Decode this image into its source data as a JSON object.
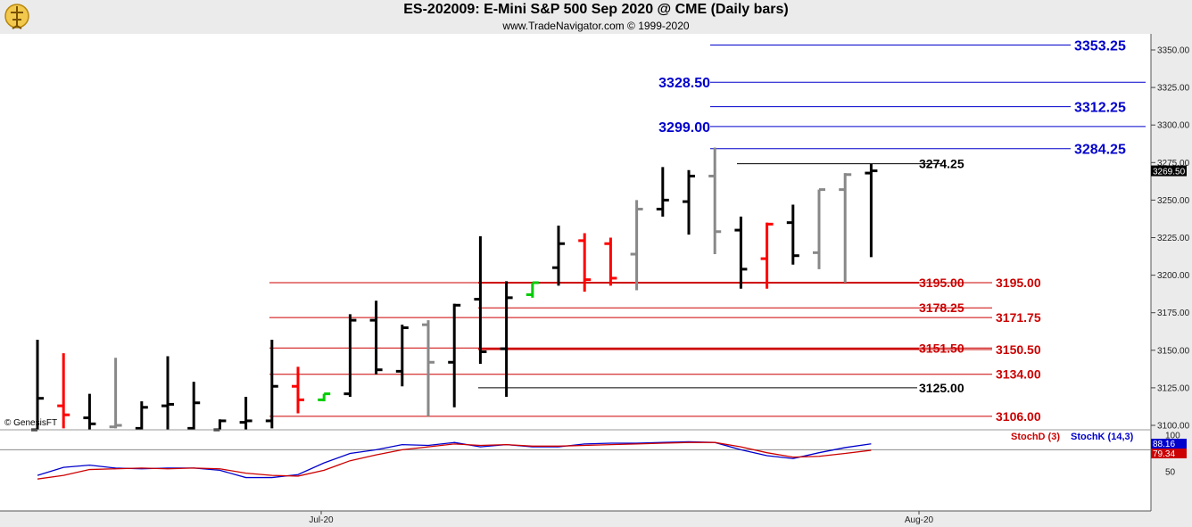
{
  "header": {
    "title": "ES-202009:  E-Mini S&P 500 Sep 2020 @ CME  (Daily bars)",
    "subtitle": "www.TradeNavigator.com © 1999-2020"
  },
  "copyright": "© GenesisFT",
  "colors": {
    "up_bar": "#000000",
    "down_bar": "#ff0000",
    "grey_bar": "#888888",
    "green_bar": "#00cc00",
    "blue_level": "#0000cc",
    "red_level": "#cc0000",
    "stoch_k": "#0000cc",
    "stoch_d": "#cc0000"
  },
  "chart_data": [
    {
      "type": "ohlc",
      "price_axis": {
        "min": 3100,
        "max": 3350,
        "ticks": [
          "3100.00",
          "3125.00",
          "3150.00",
          "3175.00",
          "3200.00",
          "3225.00",
          "3250.00",
          "3275.00",
          "3300.00",
          "3325.00",
          "3350.00"
        ]
      },
      "time_axis": {
        "labels": [
          "Jul-20",
          "Aug-20"
        ]
      },
      "last_price": "3269.50",
      "bars": [
        {
          "h": 3157,
          "l": 3090,
          "o": 3090,
          "c": 3118,
          "color": "black"
        },
        {
          "h": 3148,
          "l": 3098,
          "o": 3113,
          "c": 3107,
          "color": "red"
        },
        {
          "h": 3121,
          "l": 3095,
          "o": 3105,
          "c": 3101,
          "color": "black"
        },
        {
          "h": 3145,
          "l": 3098,
          "o": 3099,
          "c": 3100,
          "color": "grey"
        },
        {
          "h": 3116,
          "l": 3097,
          "o": 3098,
          "c": 3112,
          "color": "black"
        },
        {
          "h": 3146,
          "l": 3097,
          "o": 3113,
          "c": 3114,
          "color": "black"
        },
        {
          "h": 3129,
          "l": 3097,
          "o": 3098,
          "c": 3115,
          "color": "black"
        },
        {
          "h": 3104,
          "l": 3093,
          "o": 3094,
          "c": 3103,
          "color": "black"
        },
        {
          "h": 3119,
          "l": 3096,
          "o": 3102,
          "c": 3103,
          "color": "black"
        },
        {
          "h": 3157,
          "l": 3098,
          "o": 3103,
          "c": 3126,
          "color": "black"
        },
        {
          "h": 3139,
          "l": 3108,
          "o": 3126,
          "c": 3117,
          "color": "red"
        },
        {
          "h": 3121,
          "l": 3116,
          "o": 3117,
          "c": 3121,
          "color": "green"
        },
        {
          "h": 3174,
          "l": 3119,
          "o": 3121,
          "c": 3170,
          "color": "black"
        },
        {
          "h": 3183,
          "l": 3134,
          "o": 3170,
          "c": 3137,
          "color": "black"
        },
        {
          "h": 3167,
          "l": 3126,
          "o": 3136,
          "c": 3165,
          "color": "black"
        },
        {
          "h": 3170,
          "l": 3106,
          "o": 3167,
          "c": 3142,
          "color": "grey"
        },
        {
          "h": 3181,
          "l": 3112,
          "o": 3142,
          "c": 3180,
          "color": "black"
        },
        {
          "h": 3226,
          "l": 3141,
          "o": 3184,
          "c": 3149,
          "color": "black"
        },
        {
          "h": 3196,
          "l": 3119,
          "o": 3151,
          "c": 3185,
          "color": "black"
        },
        {
          "h": 3195,
          "l": 3185,
          "o": 3187,
          "c": 3195,
          "color": "green"
        },
        {
          "h": 3233,
          "l": 3193,
          "o": 3205,
          "c": 3221,
          "color": "black"
        },
        {
          "h": 3228,
          "l": 3189,
          "o": 3223,
          "c": 3197,
          "color": "red"
        },
        {
          "h": 3225,
          "l": 3193,
          "o": 3221,
          "c": 3198,
          "color": "red"
        },
        {
          "h": 3250,
          "l": 3190,
          "o": 3214,
          "c": 3244,
          "color": "grey"
        },
        {
          "h": 3272,
          "l": 3239,
          "o": 3244,
          "c": 3250,
          "color": "black"
        },
        {
          "h": 3270,
          "l": 3227,
          "o": 3249,
          "c": 3266,
          "color": "black"
        },
        {
          "h": 3285,
          "l": 3214,
          "o": 3266,
          "c": 3229,
          "color": "grey"
        },
        {
          "h": 3239,
          "l": 3191,
          "o": 3230,
          "c": 3204,
          "color": "black"
        },
        {
          "h": 3235,
          "l": 3191,
          "o": 3211,
          "c": 3234,
          "color": "red"
        },
        {
          "h": 3247,
          "l": 3207,
          "o": 3235,
          "c": 3213,
          "color": "black"
        },
        {
          "h": 3257,
          "l": 3204,
          "o": 3215,
          "c": 3257,
          "color": "grey"
        },
        {
          "h": 3268,
          "l": 3195,
          "o": 3257,
          "c": 3267,
          "color": "grey"
        },
        {
          "h": 3274,
          "l": 3212,
          "o": 3268,
          "c": 3269.5,
          "color": "black"
        }
      ],
      "levels": [
        {
          "price": 3353.25,
          "label": "3353.25",
          "color": "blue",
          "label_pos": "right"
        },
        {
          "price": 3328.5,
          "label": "3328.50",
          "color": "blue",
          "label_pos": "left"
        },
        {
          "price": 3312.25,
          "label": "3312.25",
          "color": "blue",
          "label_pos": "right"
        },
        {
          "price": 3299.0,
          "label": "3299.00",
          "color": "blue",
          "label_pos": "left"
        },
        {
          "price": 3284.25,
          "label": "3284.25",
          "color": "blue",
          "label_pos": "right"
        },
        {
          "price": 3274.25,
          "label": "3274.25",
          "color": "black",
          "label_pos": "mid"
        },
        {
          "price": 3195.0,
          "label": "3195.00",
          "color": "red",
          "label_pos": "mid"
        },
        {
          "price": 3195.0,
          "label": "3195.00",
          "color": "red",
          "label_pos": "right"
        },
        {
          "price": 3178.25,
          "label": "3178.25",
          "color": "red",
          "label_pos": "mid"
        },
        {
          "price": 3171.75,
          "label": "3171.75",
          "color": "red",
          "label_pos": "right"
        },
        {
          "price": 3151.5,
          "label": "3151.50",
          "color": "red",
          "label_pos": "mid"
        },
        {
          "price": 3150.5,
          "label": "3150.50",
          "color": "red",
          "label_pos": "right"
        },
        {
          "price": 3134.0,
          "label": "3134.00",
          "color": "red",
          "label_pos": "right"
        },
        {
          "price": 3125.0,
          "label": "3125.00",
          "color": "black",
          "label_pos": "mid"
        },
        {
          "price": 3106.0,
          "label": "3106.00",
          "color": "red",
          "label_pos": "right"
        }
      ]
    },
    {
      "type": "line",
      "indicator": "stochastic",
      "y_axis": {
        "min": 0,
        "max": 100,
        "ticks": [
          "50",
          "100"
        ]
      },
      "legend": {
        "stoch_d": "StochD (3)",
        "stoch_k": "StochK (14,3)"
      },
      "last_values": {
        "stoch_k": "88.16",
        "stoch_d": "79.34"
      },
      "series": [
        {
          "name": "StochK (14,3)",
          "key": "k",
          "values": [
            45,
            56,
            59,
            55,
            54,
            55,
            55,
            52,
            42,
            42,
            46,
            62,
            75,
            80,
            87,
            86,
            90,
            84,
            87,
            84,
            84,
            88,
            89,
            89,
            90,
            91,
            90,
            80,
            72,
            68,
            76,
            83,
            88.16
          ]
        },
        {
          "name": "StochD (3)",
          "key": "d",
          "values": [
            40,
            45,
            53,
            54,
            55,
            54,
            55,
            54,
            48,
            45,
            44,
            52,
            65,
            73,
            80,
            84,
            88,
            86,
            87,
            85,
            85,
            86,
            87,
            88,
            89,
            90,
            90,
            84,
            76,
            70,
            71,
            75,
            79.34
          ]
        }
      ]
    }
  ]
}
